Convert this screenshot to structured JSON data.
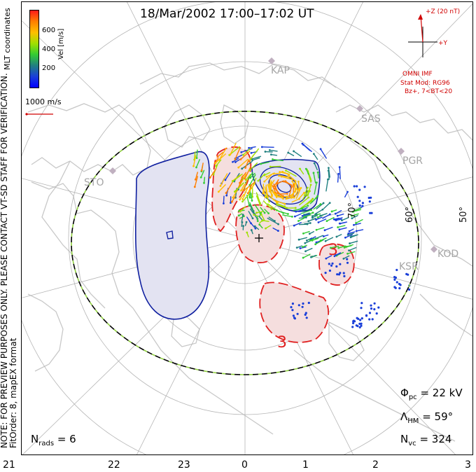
{
  "title": "18/Mar/2002 17:00–17:02 UT",
  "side_note": {
    "line1": "NOTE: FOR PREVIEW PURPOSES ONLY. PLEASE CONTACT VT-SD STAFF FOR VERIFICATION.",
    "line2": "FitOrder: 8, mapEX format"
  },
  "coord_label": "MLT coordinates",
  "colorbar": {
    "title": "Vel [m/s]",
    "ticks": [
      "600",
      "400",
      "200"
    ],
    "colors": [
      "#ff1a1a",
      "#ff7f00",
      "#ffbf00",
      "#a0e000",
      "#33cc33",
      "#208080",
      "#1a3fd9",
      "#0000ff"
    ]
  },
  "scale": {
    "label": "1000 m/s",
    "color": "#d00000"
  },
  "imf": {
    "z_label": "+Z (20 nT)",
    "y_label": "+Y",
    "source": "OMNI IMF",
    "model_line1": "Stat Mod: RG96",
    "model_line2": "Bz+, 7<BT<20",
    "color": "#d00000"
  },
  "stations": [
    "KAP",
    "SAS",
    "PGR",
    "STO",
    "KOD",
    "KSR"
  ],
  "latitude_labels": [
    "70°",
    "60°",
    "50°"
  ],
  "mlt_ticks": [
    "21",
    "22",
    "23",
    "0",
    "1",
    "2",
    "3"
  ],
  "stats": {
    "phi_sym": "Φ",
    "phi_sub": "pc",
    "phi_value": "= 22 kV",
    "lambda_sym": "Λ",
    "lambda_sub": "HM",
    "lambda_value": "= 59°",
    "nvc_sym": "N",
    "nvc_sub": "vc",
    "nvc_value": "= 324",
    "nrads_sym": "N",
    "nrads_sub": "rads",
    "nrads_value": "= 6"
  },
  "contour_labels": [
    "3",
    "3"
  ],
  "colors": {
    "negative_cell_fill": "#e3e3f2",
    "negative_cell_line": "#1020a0",
    "positive_cell_fill": "#f5dede",
    "positive_cell_line": "#e02020",
    "coastline": "#c8c8c8",
    "grid": "#b5b5b5",
    "boundary_primary": "#000000",
    "boundary_secondary": "#90d040"
  }
}
